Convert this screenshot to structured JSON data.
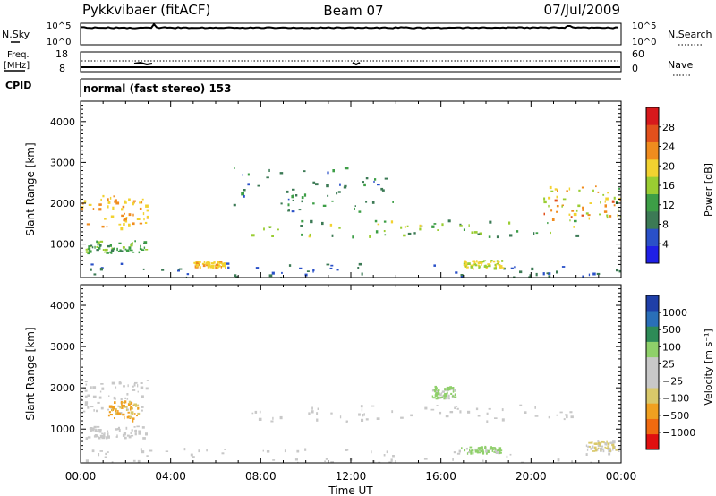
{
  "header": {
    "station": "Pykkvibaer (fitACF)",
    "beam": "Beam 07",
    "date": "07/Jul/2009"
  },
  "strips": {
    "nsky_label": "N.Sky",
    "nsearch_label": "N.Search",
    "noise_ticks": [
      "10^5",
      "10^0"
    ],
    "freq_label_1": "Freq.",
    "freq_label_2": "[MHz]",
    "freq_ticks": [
      "18",
      "8"
    ],
    "nave_label": "Nave",
    "nave_ticks": [
      "60",
      "0"
    ],
    "cpid_label": "CPID",
    "cpid_text": "normal (fast stereo) 153"
  },
  "colors": {
    "power_scale": [
      "#1f1fe6",
      "#2a50c8",
      "#3c7a55",
      "#3d9e46",
      "#9acd32",
      "#f2d230",
      "#f08c1e",
      "#e2501c",
      "#d7191c"
    ],
    "velocity_scale": [
      "#e01010",
      "#f06a10",
      "#f0a020",
      "#d9c86a",
      "#c8c8c8",
      "#c8c8c8",
      "#8fd06a",
      "#2e8b57",
      "#2a6fb8",
      "#1f3fa8"
    ]
  },
  "chart_data": [
    {
      "type": "heatmap",
      "panel": "power",
      "xlabel": "",
      "ylabel": "Slant Range [km]",
      "x_ticks": [
        "00:00",
        "04:00",
        "08:00",
        "12:00",
        "16:00",
        "20:00",
        "00:00"
      ],
      "y_ticks": [
        1000,
        2000,
        3000,
        4000
      ],
      "xlim": [
        0,
        24
      ],
      "ylim": [
        180,
        4500
      ],
      "colorbar_label": "Power [dB]",
      "colorbar_ticks": [
        "28",
        "24",
        "20",
        "16",
        "12",
        "8",
        "4"
      ],
      "colorbar_range": [
        0,
        32
      ],
      "regions": [
        {
          "name": "near-range",
          "t": [
            0,
            24
          ],
          "r": [
            200,
            550
          ],
          "v": [
            5,
            10
          ]
        },
        {
          "name": "early-band-1",
          "t": [
            0,
            3.0
          ],
          "r": [
            1400,
            2200
          ],
          "v": [
            18,
            24
          ]
        },
        {
          "name": "early-band-2",
          "t": [
            0.2,
            2.9
          ],
          "r": [
            800,
            1100
          ],
          "v": [
            10,
            16
          ]
        },
        {
          "name": "main-band",
          "t": [
            7.5,
            22
          ],
          "r": [
            1200,
            1600
          ],
          "v": [
            8,
            20
          ]
        },
        {
          "name": "upper-patches",
          "t": [
            6.5,
            14
          ],
          "r": [
            1800,
            2900
          ],
          "v": [
            6,
            12
          ]
        },
        {
          "name": "late-band",
          "t": [
            20.5,
            24
          ],
          "r": [
            1600,
            2500
          ],
          "v": [
            14,
            26
          ]
        },
        {
          "name": "mid-patch",
          "t": [
            5.0,
            6.4
          ],
          "r": [
            450,
            600
          ],
          "v": [
            18,
            22
          ]
        },
        {
          "name": "late-patch",
          "t": [
            17.0,
            18.8
          ],
          "r": [
            420,
            620
          ],
          "v": [
            16,
            20
          ]
        }
      ]
    },
    {
      "type": "heatmap",
      "panel": "velocity",
      "xlabel": "Time UT",
      "ylabel": "Slant Range [km]",
      "x_ticks": [
        "00:00",
        "04:00",
        "08:00",
        "12:00",
        "16:00",
        "20:00",
        "00:00"
      ],
      "y_ticks": [
        1000,
        2000,
        3000,
        4000
      ],
      "xlim": [
        0,
        24
      ],
      "ylim": [
        180,
        4500
      ],
      "colorbar_label": "Velocity [m s⁻¹]",
      "colorbar_ticks": [
        "1000",
        "500",
        "100",
        "25",
        "−25",
        "−100",
        "−500",
        "−1000"
      ],
      "colorbar_range": [
        -1250,
        1250
      ],
      "regions": [
        {
          "name": "near-range",
          "t": [
            0,
            24
          ],
          "r": [
            200,
            550
          ],
          "v": [
            -100,
            50
          ]
        },
        {
          "name": "early-band-1",
          "t": [
            0,
            3.0
          ],
          "r": [
            1400,
            2200
          ],
          "v": [
            -20,
            20
          ]
        },
        {
          "name": "early-band-2",
          "t": [
            0.2,
            2.9
          ],
          "r": [
            800,
            1100
          ],
          "v": [
            -20,
            20
          ]
        },
        {
          "name": "red-streaks",
          "t": [
            1.2,
            2.6
          ],
          "r": [
            1200,
            1700
          ],
          "v": [
            -700,
            -400
          ]
        },
        {
          "name": "main-band",
          "t": [
            7.5,
            22
          ],
          "r": [
            1200,
            1600
          ],
          "v": [
            -20,
            20
          ]
        },
        {
          "name": "green-patch-1",
          "t": [
            15.6,
            16.6
          ],
          "r": [
            1750,
            2050
          ],
          "v": [
            150,
            450
          ]
        },
        {
          "name": "green-patch-2",
          "t": [
            16.8,
            18.6
          ],
          "r": [
            430,
            600
          ],
          "v": [
            150,
            450
          ]
        },
        {
          "name": "orange-patch",
          "t": [
            22.4,
            24
          ],
          "r": [
            480,
            720
          ],
          "v": [
            -400,
            -150
          ]
        }
      ]
    }
  ]
}
